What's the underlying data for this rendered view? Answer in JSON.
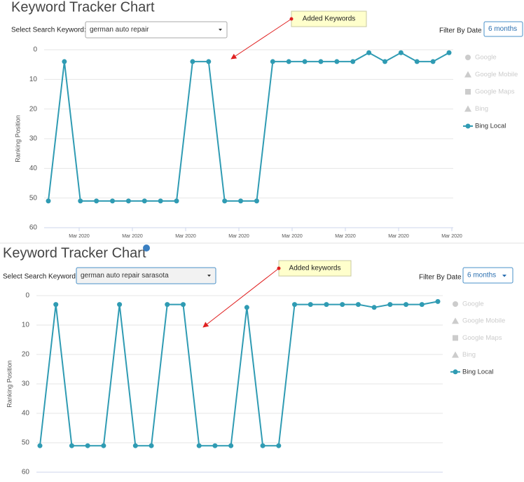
{
  "chart_data": [
    {
      "type": "line",
      "title": "Keyword Tracker Chart",
      "select_label": "Select Search Keyword:",
      "keyword": "german auto repair",
      "filter_label": "Filter By Date",
      "filter_value": "6 months",
      "annotation": "Added Keywords",
      "y_label": "Ranking Position",
      "y_inverted": true,
      "ylim": [
        0,
        60
      ],
      "yticks": [
        0,
        10,
        20,
        30,
        40,
        50,
        60
      ],
      "grid": true,
      "x_labels": [
        "Mar 2020",
        "Mar 2020",
        "Mar 2020",
        "Mar 2020",
        "Mar 2020",
        "Mar 2020",
        "Mar 2020",
        "Mar 2020"
      ],
      "series": [
        {
          "name": "Google",
          "color": "#cccccc",
          "visible": false
        },
        {
          "name": "Google Mobile",
          "color": "#cccccc",
          "visible": false
        },
        {
          "name": "Google Maps",
          "color": "#cccccc",
          "visible": false
        },
        {
          "name": "Bing",
          "color": "#cccccc",
          "visible": false
        },
        {
          "name": "Bing Local",
          "color": "#2f9bb3",
          "visible": true,
          "values": [
            51,
            4,
            51,
            51,
            51,
            51,
            51,
            51,
            51,
            4,
            4,
            51,
            51,
            51,
            4,
            4,
            4,
            4,
            4,
            4,
            1,
            4,
            1,
            4,
            4,
            1
          ]
        }
      ]
    },
    {
      "type": "line",
      "title": "Keyword Tracker Chart",
      "select_label": "Select Search Keyword:",
      "keyword": "german auto repair sarasota",
      "filter_label": "Filter By Date",
      "filter_value": "6 months",
      "annotation": "Added keywords",
      "y_label": "Ranking Position",
      "y_inverted": true,
      "ylim": [
        0,
        60
      ],
      "yticks": [
        0,
        10,
        20,
        30,
        40,
        50,
        60
      ],
      "grid": true,
      "series": [
        {
          "name": "Google",
          "color": "#cccccc",
          "visible": false
        },
        {
          "name": "Google Mobile",
          "color": "#cccccc",
          "visible": false
        },
        {
          "name": "Google Maps",
          "color": "#cccccc",
          "visible": false
        },
        {
          "name": "Bing",
          "color": "#cccccc",
          "visible": false
        },
        {
          "name": "Bing Local",
          "color": "#2f9bb3",
          "visible": true,
          "values": [
            51,
            3,
            51,
            51,
            51,
            3,
            51,
            51,
            3,
            3,
            51,
            51,
            51,
            4,
            51,
            51,
            3,
            3,
            3,
            3,
            3,
            4,
            3,
            3,
            3,
            2
          ]
        }
      ]
    }
  ]
}
